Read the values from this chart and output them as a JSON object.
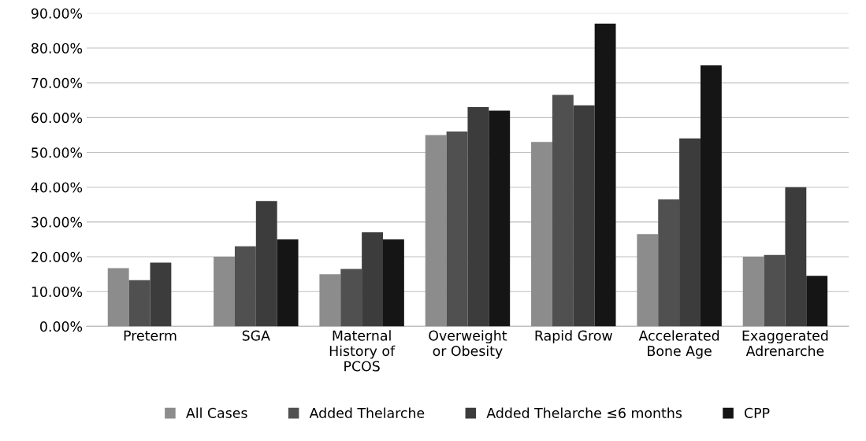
{
  "chart_data": {
    "type": "bar",
    "categories": [
      "Preterm",
      "SGA",
      "Maternal\nHistory of\nPCOS",
      "Overweight\nor Obesity",
      "Rapid Grow",
      "Accelerated\nBone Age",
      "Exaggerated\nAdrenarche"
    ],
    "series": [
      {
        "name": "All Cases",
        "color": "#8c8c8c",
        "values": [
          16.7,
          20,
          15,
          55,
          53,
          26.5,
          20
        ]
      },
      {
        "name": "Added Thelarche",
        "color": "#505050",
        "values": [
          13.3,
          23,
          16.5,
          56,
          66.5,
          36.5,
          20.5
        ]
      },
      {
        "name": "Added Thelarche ≤6 months",
        "color": "#3c3c3c",
        "values": [
          18.3,
          36,
          27,
          63,
          63.5,
          54,
          40
        ]
      },
      {
        "name": "CPP",
        "color": "#151515",
        "values": [
          0,
          25,
          25,
          62,
          87,
          75,
          14.5
        ]
      }
    ],
    "ylim": [
      0,
      90
    ],
    "yticks": [
      {
        "value": 0,
        "label": "0.00%"
      },
      {
        "value": 10,
        "label": "10.00%"
      },
      {
        "value": 20,
        "label": "20.00%"
      },
      {
        "value": 30,
        "label": "30.00%"
      },
      {
        "value": 40,
        "label": "40.00%"
      },
      {
        "value": 50,
        "label": "50.00%"
      },
      {
        "value": 60,
        "label": "60.00%"
      },
      {
        "value": 70,
        "label": "70.00%"
      },
      {
        "value": 80,
        "label": "80.00%"
      },
      {
        "value": 90,
        "label": "90.00%"
      }
    ],
    "grid": "y",
    "legend": "bottom"
  }
}
